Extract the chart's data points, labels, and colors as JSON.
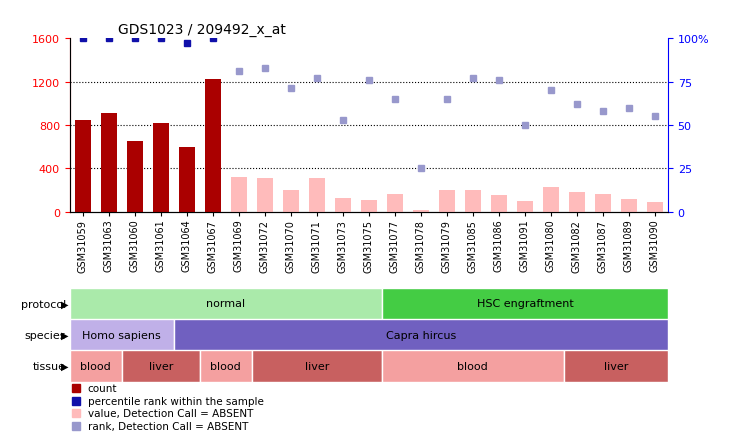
{
  "title": "GDS1023 / 209492_x_at",
  "samples": [
    "GSM31059",
    "GSM31063",
    "GSM31060",
    "GSM31061",
    "GSM31064",
    "GSM31067",
    "GSM31069",
    "GSM31072",
    "GSM31070",
    "GSM31071",
    "GSM31073",
    "GSM31075",
    "GSM31077",
    "GSM31078",
    "GSM31079",
    "GSM31085",
    "GSM31086",
    "GSM31091",
    "GSM31080",
    "GSM31082",
    "GSM31087",
    "GSM31089",
    "GSM31090"
  ],
  "count_values": [
    850,
    910,
    650,
    820,
    600,
    1220,
    320,
    310,
    200,
    310,
    130,
    110,
    160,
    18,
    200,
    200,
    155,
    100,
    230,
    185,
    165,
    120,
    90
  ],
  "count_present": [
    true,
    true,
    true,
    true,
    true,
    true,
    false,
    false,
    false,
    false,
    false,
    false,
    false,
    false,
    false,
    false,
    false,
    false,
    false,
    false,
    false,
    false,
    false
  ],
  "percentile_values": [
    100,
    100,
    100,
    100,
    97,
    100,
    81,
    83,
    71,
    77,
    53,
    76,
    65,
    25,
    65,
    77,
    76,
    50,
    70,
    62,
    58,
    60,
    55
  ],
  "percentile_present": [
    true,
    true,
    true,
    true,
    true,
    true,
    false,
    false,
    false,
    false,
    false,
    false,
    false,
    false,
    false,
    false,
    false,
    false,
    false,
    false,
    false,
    false,
    false
  ],
  "protocol_groups": [
    {
      "label": "normal",
      "start": 0,
      "end": 12,
      "color": "#AAEAAA"
    },
    {
      "label": "HSC engraftment",
      "start": 12,
      "end": 23,
      "color": "#44CC44"
    }
  ],
  "species_groups": [
    {
      "label": "Homo sapiens",
      "start": 0,
      "end": 4,
      "color": "#C0B0E8"
    },
    {
      "label": "Capra hircus",
      "start": 4,
      "end": 23,
      "color": "#7060C0"
    }
  ],
  "tissue_groups": [
    {
      "label": "blood",
      "start": 0,
      "end": 2,
      "color": "#F4A0A0"
    },
    {
      "label": "liver",
      "start": 2,
      "end": 5,
      "color": "#C86060"
    },
    {
      "label": "blood",
      "start": 5,
      "end": 7,
      "color": "#F4A0A0"
    },
    {
      "label": "liver",
      "start": 7,
      "end": 12,
      "color": "#C86060"
    },
    {
      "label": "blood",
      "start": 12,
      "end": 19,
      "color": "#F4A0A0"
    },
    {
      "label": "liver",
      "start": 19,
      "end": 23,
      "color": "#C86060"
    }
  ],
  "bar_color_present": "#AA0000",
  "bar_color_absent": "#FFBBBB",
  "dot_color_present": "#1010AA",
  "dot_color_absent": "#9898CC",
  "ylim_left": [
    0,
    1600
  ],
  "ylim_right": [
    0,
    100
  ],
  "yticks_left": [
    0,
    400,
    800,
    1200,
    1600
  ],
  "yticks_right": [
    0,
    25,
    50,
    75,
    100
  ],
  "grid_values": [
    400,
    800,
    1200
  ],
  "legend_items": [
    {
      "color": "#AA0000",
      "label": "count"
    },
    {
      "color": "#1010AA",
      "label": "percentile rank within the sample"
    },
    {
      "color": "#FFBBBB",
      "label": "value, Detection Call = ABSENT"
    },
    {
      "color": "#9898CC",
      "label": "rank, Detection Call = ABSENT"
    }
  ]
}
